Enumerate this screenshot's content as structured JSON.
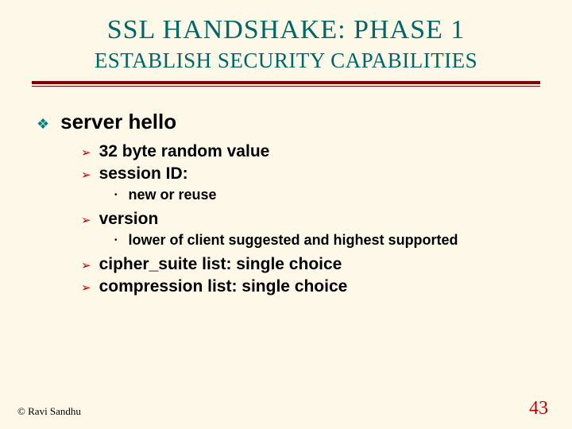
{
  "colors": {
    "background": "#fdf8e8",
    "title": "#006666",
    "divider": "#800000",
    "bullet_lvl1": "#008080",
    "bullet_lvl2": "#c00000",
    "bullet_lvl3": "#000000",
    "body_text": "#000000",
    "page_number": "#c00000"
  },
  "typography": {
    "title_family": "Times New Roman",
    "body_family": "Arial",
    "title_size_pt": 26,
    "subtitle_size_pt": 20,
    "lvl1_size_pt": 20,
    "lvl2_size_pt": 16,
    "lvl3_size_pt": 14,
    "footer_size_pt": 10,
    "pagenum_size_pt": 18
  },
  "title": "SSL HANDSHAKE: PHASE 1",
  "subtitle": "ESTABLISH SECURITY CAPABILITIES",
  "bullets": {
    "lvl1_glyph": "❖",
    "lvl2_glyph": "➢",
    "lvl3_glyph": "•"
  },
  "content": {
    "item1": {
      "label": "server hello",
      "children": {
        "c1": "32 byte random value",
        "c2": "session ID:",
        "c2_sub1": "new or reuse",
        "c3": "version",
        "c3_sub1": "lower of client suggested and highest supported",
        "c4": "cipher_suite list: single choice",
        "c5": "compression list: single choice"
      }
    }
  },
  "footer": {
    "copyright": "© Ravi Sandhu",
    "page": "43"
  }
}
